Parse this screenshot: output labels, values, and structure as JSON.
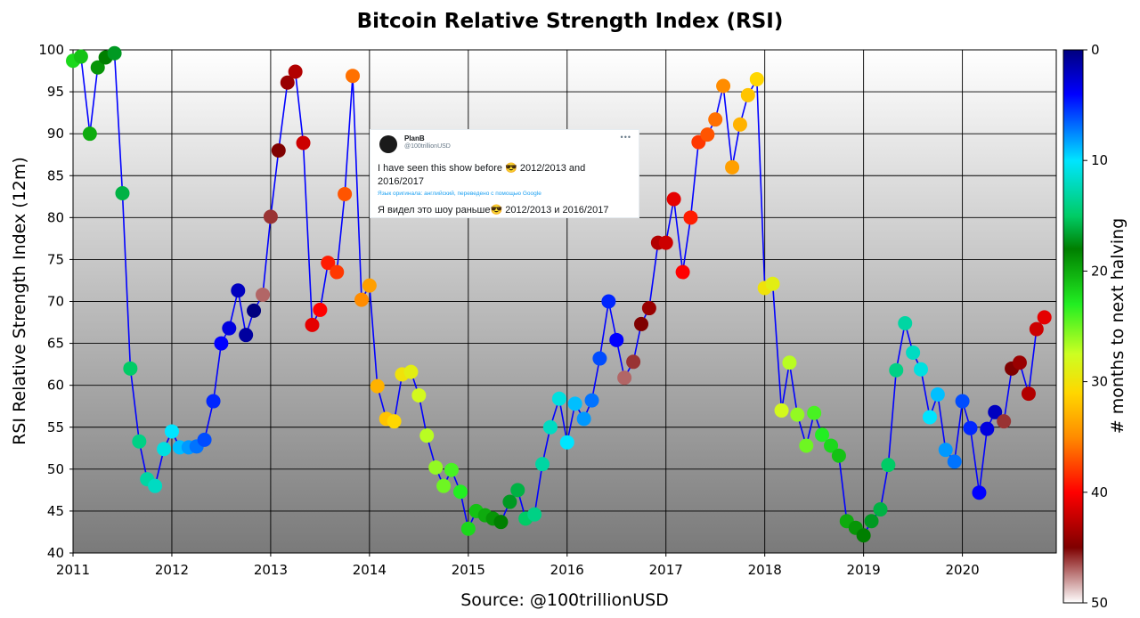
{
  "chart_data": {
    "type": "scatter",
    "title": "Bitcoin Relative Strength Index (RSI)",
    "xlabel": "Source: @100trillionUSD",
    "ylabel": "RSI Relative Strength Index (12m)",
    "colorbar_label": "# months to next halving",
    "xlim": [
      2011,
      2020.95
    ],
    "ylim": [
      40,
      100
    ],
    "x_ticks": [
      "2011",
      "2012",
      "2013",
      "2014",
      "2015",
      "2016",
      "2017",
      "2018",
      "2019",
      "2020"
    ],
    "y_ticks": [
      "40",
      "45",
      "50",
      "55",
      "60",
      "65",
      "70",
      "75",
      "80",
      "85",
      "90",
      "95",
      "100"
    ],
    "colorbar_ticks": [
      "0",
      "10",
      "20",
      "30",
      "40",
      "50"
    ],
    "colorbar_range": [
      0,
      50
    ],
    "grid": true,
    "line_color": "#0000ff",
    "points": [
      {
        "x": 2011.0,
        "rsi": 98.7,
        "months": 22
      },
      {
        "x": 2011.08,
        "rsi": 99.2,
        "months": 21
      },
      {
        "x": 2011.17,
        "rsi": 90.0,
        "months": 20
      },
      {
        "x": 2011.25,
        "rsi": 97.9,
        "months": 19
      },
      {
        "x": 2011.33,
        "rsi": 99.1,
        "months": 18
      },
      {
        "x": 2011.42,
        "rsi": 99.6,
        "months": 17
      },
      {
        "x": 2011.5,
        "rsi": 82.9,
        "months": 16
      },
      {
        "x": 2011.58,
        "rsi": 62.0,
        "months": 15
      },
      {
        "x": 2011.67,
        "rsi": 53.3,
        "months": 14
      },
      {
        "x": 2011.75,
        "rsi": 48.8,
        "months": 13
      },
      {
        "x": 2011.83,
        "rsi": 48.0,
        "months": 12
      },
      {
        "x": 2011.92,
        "rsi": 52.4,
        "months": 11
      },
      {
        "x": 2012.0,
        "rsi": 54.5,
        "months": 10
      },
      {
        "x": 2012.08,
        "rsi": 52.6,
        "months": 9
      },
      {
        "x": 2012.17,
        "rsi": 52.6,
        "months": 8
      },
      {
        "x": 2012.25,
        "rsi": 52.7,
        "months": 7
      },
      {
        "x": 2012.33,
        "rsi": 53.5,
        "months": 6
      },
      {
        "x": 2012.42,
        "rsi": 58.1,
        "months": 5
      },
      {
        "x": 2012.5,
        "rsi": 65.0,
        "months": 4
      },
      {
        "x": 2012.58,
        "rsi": 66.8,
        "months": 3
      },
      {
        "x": 2012.67,
        "rsi": 71.3,
        "months": 2
      },
      {
        "x": 2012.75,
        "rsi": 66.0,
        "months": 1
      },
      {
        "x": 2012.83,
        "rsi": 68.9,
        "months": 0
      },
      {
        "x": 2012.92,
        "rsi": 70.8,
        "months": 47
      },
      {
        "x": 2013.0,
        "rsi": 80.1,
        "months": 46
      },
      {
        "x": 2013.08,
        "rsi": 88.0,
        "months": 45
      },
      {
        "x": 2013.17,
        "rsi": 96.1,
        "months": 44
      },
      {
        "x": 2013.25,
        "rsi": 97.4,
        "months": 43
      },
      {
        "x": 2013.33,
        "rsi": 88.9,
        "months": 42
      },
      {
        "x": 2013.42,
        "rsi": 67.2,
        "months": 41
      },
      {
        "x": 2013.5,
        "rsi": 69.0,
        "months": 40
      },
      {
        "x": 2013.58,
        "rsi": 74.6,
        "months": 39
      },
      {
        "x": 2013.67,
        "rsi": 73.5,
        "months": 38
      },
      {
        "x": 2013.75,
        "rsi": 82.8,
        "months": 37
      },
      {
        "x": 2013.83,
        "rsi": 96.9,
        "months": 36
      },
      {
        "x": 2013.92,
        "rsi": 70.2,
        "months": 35
      },
      {
        "x": 2014.0,
        "rsi": 71.9,
        "months": 34
      },
      {
        "x": 2014.08,
        "rsi": 59.9,
        "months": 33
      },
      {
        "x": 2014.17,
        "rsi": 56.0,
        "months": 32
      },
      {
        "x": 2014.25,
        "rsi": 55.7,
        "months": 31
      },
      {
        "x": 2014.33,
        "rsi": 61.3,
        "months": 30
      },
      {
        "x": 2014.42,
        "rsi": 61.6,
        "months": 29
      },
      {
        "x": 2014.5,
        "rsi": 58.8,
        "months": 28
      },
      {
        "x": 2014.58,
        "rsi": 54.0,
        "months": 27
      },
      {
        "x": 2014.67,
        "rsi": 50.2,
        "months": 26
      },
      {
        "x": 2014.75,
        "rsi": 48.0,
        "months": 25
      },
      {
        "x": 2014.83,
        "rsi": 49.9,
        "months": 24
      },
      {
        "x": 2014.92,
        "rsi": 47.3,
        "months": 23
      },
      {
        "x": 2015.0,
        "rsi": 42.9,
        "months": 22
      },
      {
        "x": 2015.08,
        "rsi": 45.0,
        "months": 21
      },
      {
        "x": 2015.17,
        "rsi": 44.5,
        "months": 20
      },
      {
        "x": 2015.25,
        "rsi": 44.1,
        "months": 19
      },
      {
        "x": 2015.33,
        "rsi": 43.7,
        "months": 18
      },
      {
        "x": 2015.42,
        "rsi": 46.1,
        "months": 17
      },
      {
        "x": 2015.5,
        "rsi": 47.5,
        "months": 16
      },
      {
        "x": 2015.58,
        "rsi": 44.1,
        "months": 15
      },
      {
        "x": 2015.67,
        "rsi": 44.6,
        "months": 14
      },
      {
        "x": 2015.75,
        "rsi": 50.6,
        "months": 13
      },
      {
        "x": 2015.83,
        "rsi": 55.0,
        "months": 12
      },
      {
        "x": 2015.92,
        "rsi": 58.4,
        "months": 11
      },
      {
        "x": 2016.0,
        "rsi": 53.2,
        "months": 10
      },
      {
        "x": 2016.08,
        "rsi": 57.8,
        "months": 9
      },
      {
        "x": 2016.17,
        "rsi": 56.0,
        "months": 8
      },
      {
        "x": 2016.25,
        "rsi": 58.2,
        "months": 7
      },
      {
        "x": 2016.33,
        "rsi": 63.2,
        "months": 6
      },
      {
        "x": 2016.42,
        "rsi": 70.0,
        "months": 5
      },
      {
        "x": 2016.5,
        "rsi": 65.4,
        "months": 4
      },
      {
        "x": 2016.58,
        "rsi": 60.9,
        "months": 47
      },
      {
        "x": 2016.67,
        "rsi": 62.8,
        "months": 46
      },
      {
        "x": 2016.75,
        "rsi": 67.3,
        "months": 45
      },
      {
        "x": 2016.83,
        "rsi": 69.2,
        "months": 44
      },
      {
        "x": 2016.92,
        "rsi": 77.0,
        "months": 43
      },
      {
        "x": 2017.0,
        "rsi": 77.0,
        "months": 42
      },
      {
        "x": 2017.08,
        "rsi": 82.2,
        "months": 41
      },
      {
        "x": 2017.17,
        "rsi": 73.5,
        "months": 40
      },
      {
        "x": 2017.25,
        "rsi": 80.0,
        "months": 39
      },
      {
        "x": 2017.33,
        "rsi": 89.0,
        "months": 38
      },
      {
        "x": 2017.42,
        "rsi": 89.9,
        "months": 37
      },
      {
        "x": 2017.5,
        "rsi": 91.7,
        "months": 36
      },
      {
        "x": 2017.58,
        "rsi": 95.7,
        "months": 35
      },
      {
        "x": 2017.67,
        "rsi": 86.0,
        "months": 34
      },
      {
        "x": 2017.75,
        "rsi": 91.1,
        "months": 33
      },
      {
        "x": 2017.83,
        "rsi": 94.6,
        "months": 32
      },
      {
        "x": 2017.92,
        "rsi": 96.5,
        "months": 31
      },
      {
        "x": 2018.0,
        "rsi": 71.6,
        "months": 30
      },
      {
        "x": 2018.08,
        "rsi": 72.1,
        "months": 29
      },
      {
        "x": 2018.17,
        "rsi": 57.0,
        "months": 28
      },
      {
        "x": 2018.25,
        "rsi": 62.7,
        "months": 27
      },
      {
        "x": 2018.33,
        "rsi": 56.5,
        "months": 26
      },
      {
        "x": 2018.42,
        "rsi": 52.8,
        "months": 25
      },
      {
        "x": 2018.5,
        "rsi": 56.7,
        "months": 24
      },
      {
        "x": 2018.58,
        "rsi": 54.1,
        "months": 23
      },
      {
        "x": 2018.67,
        "rsi": 52.8,
        "months": 22
      },
      {
        "x": 2018.75,
        "rsi": 51.6,
        "months": 21
      },
      {
        "x": 2018.83,
        "rsi": 43.8,
        "months": 20
      },
      {
        "x": 2018.92,
        "rsi": 43.0,
        "months": 19
      },
      {
        "x": 2019.0,
        "rsi": 42.1,
        "months": 18
      },
      {
        "x": 2019.08,
        "rsi": 43.8,
        "months": 17
      },
      {
        "x": 2019.17,
        "rsi": 45.2,
        "months": 16
      },
      {
        "x": 2019.25,
        "rsi": 50.5,
        "months": 15
      },
      {
        "x": 2019.33,
        "rsi": 61.8,
        "months": 14
      },
      {
        "x": 2019.42,
        "rsi": 67.4,
        "months": 13
      },
      {
        "x": 2019.5,
        "rsi": 63.9,
        "months": 12
      },
      {
        "x": 2019.58,
        "rsi": 61.9,
        "months": 11
      },
      {
        "x": 2019.67,
        "rsi": 56.2,
        "months": 10
      },
      {
        "x": 2019.75,
        "rsi": 58.9,
        "months": 9
      },
      {
        "x": 2019.83,
        "rsi": 52.3,
        "months": 8
      },
      {
        "x": 2019.92,
        "rsi": 50.9,
        "months": 7
      },
      {
        "x": 2020.0,
        "rsi": 58.1,
        "months": 6
      },
      {
        "x": 2020.08,
        "rsi": 54.9,
        "months": 5
      },
      {
        "x": 2020.17,
        "rsi": 47.2,
        "months": 4
      },
      {
        "x": 2020.25,
        "rsi": 54.8,
        "months": 3
      },
      {
        "x": 2020.33,
        "rsi": 56.8,
        "months": 2
      },
      {
        "x": 2020.42,
        "rsi": 55.7,
        "months": 46
      },
      {
        "x": 2020.5,
        "rsi": 62.0,
        "months": 45
      },
      {
        "x": 2020.58,
        "rsi": 62.7,
        "months": 44
      },
      {
        "x": 2020.67,
        "rsi": 59.0,
        "months": 43
      },
      {
        "x": 2020.75,
        "rsi": 66.7,
        "months": 42
      },
      {
        "x": 2020.83,
        "rsi": 68.1,
        "months": 41
      }
    ]
  },
  "tweet": {
    "name": "PlanB",
    "handle": "@100trillionUSD",
    "more": "•••",
    "text": "I have seen this show before 😎 2012/2013 and 2016/2017",
    "translated_note": "Язык оригинала: английский, переведено с помощью Google",
    "translation": "Я видел это шоу раньше😎 2012/2013 и 2016/2017"
  }
}
